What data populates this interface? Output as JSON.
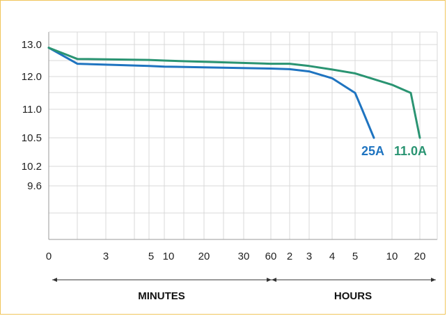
{
  "chart_data": {
    "type": "line",
    "y_ticks": [
      "13.0",
      "12.0",
      "11.0",
      "10.5",
      "10.2",
      "9.6"
    ],
    "x_ticks": [
      "0",
      "3",
      "5",
      "10",
      "20",
      "30",
      "60",
      "2",
      "3",
      "4",
      "5",
      "10",
      "20"
    ],
    "x_section_labels": [
      "MINUTES",
      "HOURS"
    ],
    "grid": true,
    "series": [
      {
        "name": "25A",
        "color": "#1f74c0",
        "points": [
          [
            "0",
            12.9
          ],
          [
            "1",
            12.4
          ],
          [
            "5",
            12.33
          ],
          [
            "10",
            12.31
          ],
          [
            "20",
            12.29
          ],
          [
            "60",
            12.25
          ],
          [
            "2h",
            12.23
          ],
          [
            "3h",
            12.16
          ],
          [
            "4h",
            11.95
          ],
          [
            "5h",
            11.5
          ],
          [
            "5.4h",
            11.0
          ],
          [
            "6h",
            10.5
          ]
        ]
      },
      {
        "name": "11.0A",
        "color": "#2a9472",
        "points": [
          [
            "0",
            12.9
          ],
          [
            "1",
            12.55
          ],
          [
            "5",
            12.52
          ],
          [
            "10",
            12.5
          ],
          [
            "20",
            12.46
          ],
          [
            "60",
            12.4
          ],
          [
            "2h",
            12.4
          ],
          [
            "3h",
            12.33
          ],
          [
            "4h",
            12.22
          ],
          [
            "5h",
            12.1
          ],
          [
            "10h",
            11.75
          ],
          [
            "15h",
            11.5
          ],
          [
            "20h",
            10.5
          ]
        ]
      }
    ]
  }
}
